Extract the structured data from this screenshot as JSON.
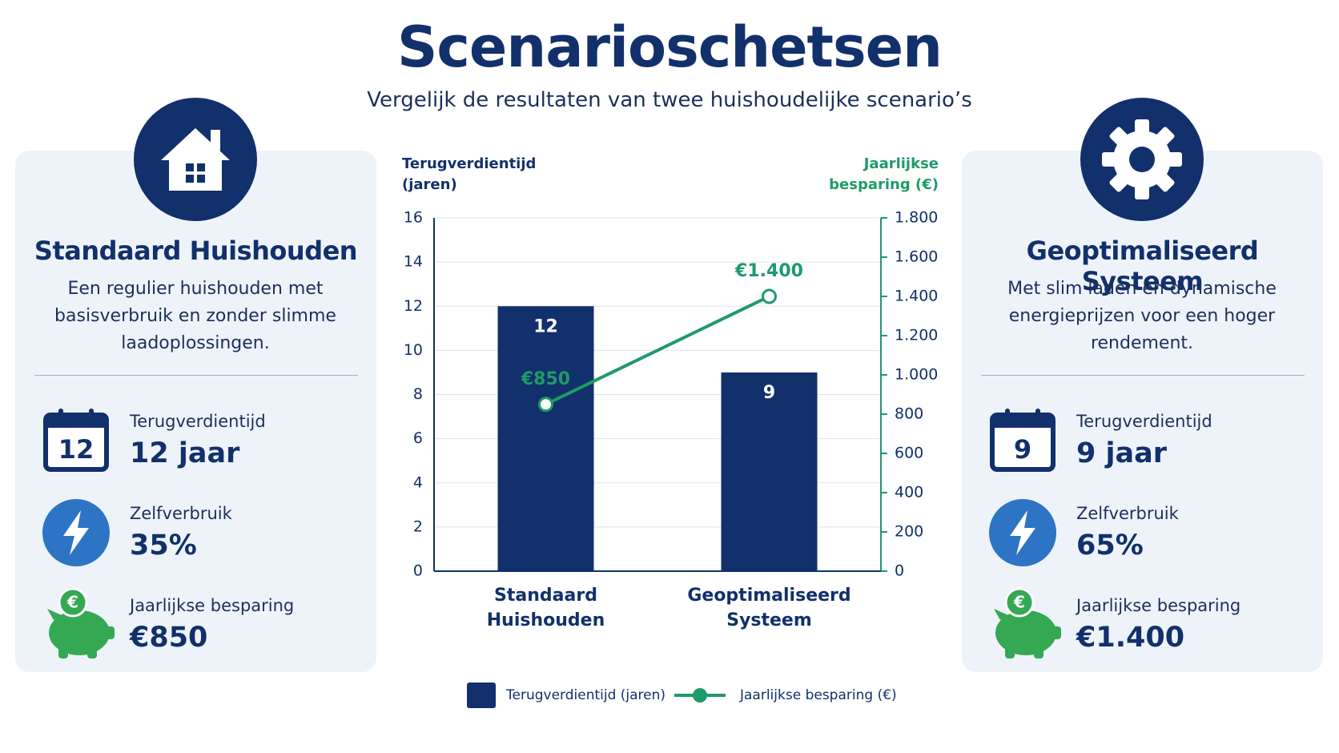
{
  "title": "Scenarioschetsen",
  "subtitle": "Vergelijk de resultaten van twee huishoudelijke scenario’s",
  "scenarios": [
    {
      "name": "Standaard Huishouden",
      "description": "Een regulier huishouden met basisverbruik en zonder slimme laadoplossingen.",
      "calendar": "12",
      "metrics": [
        {
          "label": "Terugverdientijd",
          "value": "12 jaar"
        },
        {
          "label": "Zelfverbruik",
          "value": "35%"
        },
        {
          "label": "Jaarlijkse besparing",
          "value": "€850"
        }
      ]
    },
    {
      "name": "Geoptimaliseerd Systeem",
      "description": "Met slim laden en dynamische energieprijzen voor een hoger rendement.",
      "calendar": "9",
      "metrics": [
        {
          "label": "Terugverdientijd",
          "value": "9 jaar"
        },
        {
          "label": "Zelfverbruik",
          "value": "65%"
        },
        {
          "label": "Jaarlijkse besparing",
          "value": "€1.400"
        }
      ]
    }
  ],
  "chart_data": {
    "type": "bar",
    "y_label": "Terugverdientijd (jaren)",
    "y2_label": "Jaarlijkse besparing (€)",
    "categories": [
      "Standaard Huishouden",
      "Geoptimaliseerd Systeem"
    ],
    "series": [
      {
        "name": "Terugverdientijd (jaren)",
        "type": "bar",
        "color": "#12306b",
        "values": [
          12,
          9
        ]
      },
      {
        "name": "Jaarlijkse besparing (€)",
        "type": "line",
        "color": "#1f9a6a",
        "axis": "y2",
        "values": [
          850,
          1400
        ],
        "value_labels": [
          "€850",
          "€1.400"
        ]
      }
    ],
    "ylim": [
      0,
      16
    ],
    "yticks": [
      0,
      2,
      4,
      6,
      8,
      10,
      12,
      14,
      16
    ],
    "y2lim": [
      0,
      1800
    ],
    "y2ticks": [
      0,
      200,
      400,
      600,
      800,
      {
        "value": 1000,
        "label": "1.000"
      },
      {
        "value": 1200,
        "label": "1.200"
      },
      {
        "value": 1400,
        "label": "1.400"
      },
      {
        "value": 1600,
        "label": "1.600"
      },
      {
        "value": 1800,
        "label": "1.800"
      }
    ],
    "grid": true,
    "legend": "bottom"
  }
}
